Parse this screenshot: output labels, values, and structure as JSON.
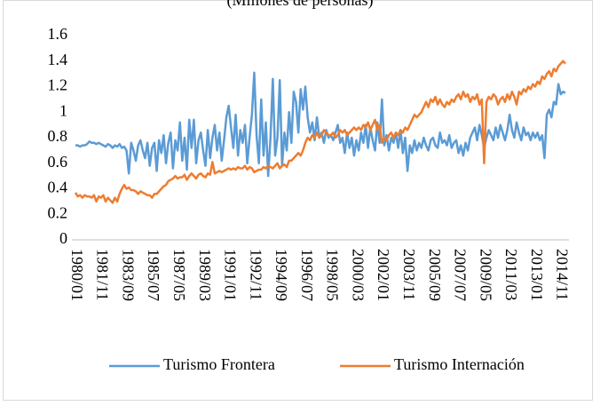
{
  "chart_data": {
    "type": "line",
    "title": "(Millones de personas)",
    "categories": [
      "1980/01",
      null,
      null,
      null,
      null,
      null,
      null,
      null,
      null,
      null,
      null,
      "1981/11",
      null,
      null,
      null,
      null,
      null,
      null,
      null,
      null,
      null,
      null,
      "1983/09",
      null,
      null,
      null,
      null,
      null,
      null,
      null,
      null,
      null,
      null,
      "1985/07",
      null,
      null,
      null,
      null,
      null,
      null,
      null,
      null,
      null,
      null,
      "1987/05",
      null,
      null,
      null,
      null,
      null,
      null,
      null,
      null,
      null,
      null,
      "1989/03",
      null,
      null,
      null,
      null,
      null,
      null,
      null,
      null,
      null,
      null,
      "1991/01",
      null,
      null,
      null,
      null,
      null,
      null,
      null,
      null,
      null,
      null,
      "1992/11",
      null,
      null,
      null,
      null,
      null,
      null,
      null,
      null,
      null,
      null,
      "1994/09",
      null,
      null,
      null,
      null,
      null,
      null,
      null,
      null,
      null,
      null,
      "1996/07",
      null,
      null,
      null,
      null,
      null,
      null,
      null,
      null,
      null,
      null,
      "1998/05",
      null,
      null,
      null,
      null,
      null,
      null,
      null,
      null,
      null,
      null,
      "2000/03",
      null,
      null,
      null,
      null,
      null,
      null,
      null,
      null,
      null,
      null,
      "2002/01",
      null,
      null,
      null,
      null,
      null,
      null,
      null,
      null,
      null,
      null,
      "2003/11",
      null,
      null,
      null,
      null,
      null,
      null,
      null,
      null,
      null,
      null,
      "2005/09",
      null,
      null,
      null,
      null,
      null,
      null,
      null,
      null,
      null,
      null,
      "2007/07",
      null,
      null,
      null,
      null,
      null,
      null,
      null,
      null,
      null,
      null,
      "2009/05",
      null,
      null,
      null,
      null,
      null,
      null,
      null,
      null,
      null,
      null,
      "2011/03",
      null,
      null,
      null,
      null,
      null,
      null,
      null,
      null,
      null,
      null,
      "2013/01",
      null,
      null,
      null,
      null,
      null,
      null,
      null,
      null,
      null,
      null,
      "2014/11",
      null,
      null
    ],
    "series": [
      {
        "name": "Turismo Frontera",
        "color": "#5b9bd5",
        "values": [
          0.74,
          0.74,
          0.73,
          0.74,
          0.74,
          0.75,
          0.77,
          0.76,
          0.76,
          0.75,
          0.76,
          0.75,
          0.74,
          0.73,
          0.75,
          0.74,
          0.72,
          0.74,
          0.73,
          0.75,
          0.72,
          0.73,
          0.7,
          0.52,
          0.76,
          0.7,
          0.62,
          0.74,
          0.78,
          0.7,
          0.64,
          0.76,
          0.58,
          0.72,
          0.76,
          0.54,
          0.78,
          0.68,
          0.82,
          0.6,
          0.76,
          0.84,
          0.56,
          0.78,
          0.7,
          0.92,
          0.62,
          0.8,
          0.55,
          0.94,
          0.72,
          0.94,
          0.6,
          0.78,
          0.84,
          0.7,
          0.58,
          0.86,
          0.64,
          0.8,
          0.9,
          0.7,
          0.84,
          0.62,
          0.78,
          0.96,
          1.05,
          0.88,
          0.72,
          0.98,
          0.66,
          0.86,
          0.76,
          0.9,
          0.6,
          0.8,
          0.98,
          1.31,
          0.82,
          0.6,
          1.1,
          0.66,
          0.92,
          0.5,
          0.8,
          1.26,
          0.66,
          0.8,
          1.25,
          0.58,
          0.84,
          0.7,
          1.0,
          0.76,
          1.16,
          1.08,
          0.84,
          1.18,
          1.02,
          1.2,
          0.96,
          0.84,
          0.92,
          0.78,
          0.96,
          0.8,
          0.84,
          0.76,
          0.86,
          0.8,
          0.82,
          0.78,
          0.84,
          0.9,
          0.76,
          0.8,
          0.68,
          0.84,
          0.72,
          0.8,
          0.66,
          0.78,
          0.7,
          0.84,
          0.76,
          0.9,
          0.72,
          0.88,
          0.78,
          0.7,
          0.92,
          0.76,
          1.1,
          0.74,
          0.82,
          0.7,
          0.8,
          0.76,
          0.84,
          0.72,
          0.86,
          0.68,
          0.8,
          0.54,
          0.74,
          0.68,
          0.78,
          0.7,
          0.76,
          0.72,
          0.8,
          0.74,
          0.7,
          0.78,
          0.8,
          0.74,
          0.72,
          0.84,
          0.76,
          0.78,
          0.74,
          0.82,
          0.72,
          0.76,
          0.78,
          0.68,
          0.74,
          0.66,
          0.76,
          0.7,
          0.8,
          0.84,
          0.88,
          0.78,
          0.9,
          0.82,
          0.72,
          0.8,
          0.86,
          0.82,
          0.78,
          0.88,
          0.8,
          0.9,
          0.84,
          0.78,
          0.86,
          0.98,
          0.86,
          0.8,
          0.92,
          0.84,
          0.78,
          0.88,
          0.82,
          0.84,
          0.78,
          0.84,
          0.8,
          0.84,
          0.78,
          0.82,
          0.64,
          0.98,
          1.02,
          0.96,
          1.08,
          1.06,
          1.22,
          1.14,
          1.16,
          1.15
        ]
      },
      {
        "name": "Turismo Internación",
        "color": "#ed7d31",
        "values": [
          0.37,
          0.34,
          0.35,
          0.33,
          0.35,
          0.34,
          0.34,
          0.33,
          0.35,
          0.3,
          0.34,
          0.33,
          0.35,
          0.3,
          0.33,
          0.31,
          0.29,
          0.33,
          0.3,
          0.36,
          0.4,
          0.43,
          0.4,
          0.41,
          0.39,
          0.39,
          0.38,
          0.36,
          0.38,
          0.37,
          0.36,
          0.35,
          0.35,
          0.33,
          0.36,
          0.36,
          0.38,
          0.4,
          0.42,
          0.43,
          0.46,
          0.47,
          0.48,
          0.5,
          0.48,
          0.49,
          0.49,
          0.51,
          0.47,
          0.5,
          0.52,
          0.5,
          0.48,
          0.51,
          0.52,
          0.5,
          0.49,
          0.52,
          0.51,
          0.61,
          0.52,
          0.53,
          0.54,
          0.53,
          0.54,
          0.55,
          0.56,
          0.55,
          0.56,
          0.55,
          0.57,
          0.56,
          0.56,
          0.58,
          0.55,
          0.57,
          0.56,
          0.53,
          0.54,
          0.55,
          0.55,
          0.57,
          0.56,
          0.58,
          0.57,
          0.56,
          0.58,
          0.6,
          0.56,
          0.58,
          0.59,
          0.57,
          0.62,
          0.62,
          0.64,
          0.66,
          0.68,
          0.66,
          0.7,
          0.76,
          0.8,
          0.78,
          0.82,
          0.8,
          0.84,
          0.8,
          0.82,
          0.86,
          0.84,
          0.82,
          0.82,
          0.84,
          0.8,
          0.82,
          0.86,
          0.84,
          0.86,
          0.82,
          0.84,
          0.86,
          0.88,
          0.86,
          0.88,
          0.86,
          0.9,
          0.88,
          0.92,
          0.86,
          0.9,
          0.94,
          0.86,
          0.9,
          0.76,
          0.8,
          0.78,
          0.82,
          0.84,
          0.8,
          0.84,
          0.82,
          0.86,
          0.84,
          0.88,
          0.86,
          0.9,
          0.94,
          0.98,
          0.96,
          0.98,
          1.0,
          1.04,
          1.08,
          1.04,
          1.1,
          1.08,
          1.12,
          1.06,
          1.1,
          1.06,
          1.04,
          1.08,
          1.06,
          1.1,
          1.08,
          1.12,
          1.14,
          1.1,
          1.16,
          1.12,
          1.14,
          1.08,
          1.12,
          1.1,
          1.14,
          1.06,
          1.1,
          0.6,
          1.08,
          1.12,
          1.1,
          1.14,
          1.12,
          1.06,
          1.1,
          1.12,
          1.08,
          1.14,
          1.1,
          1.16,
          1.12,
          1.06,
          1.16,
          1.14,
          1.18,
          1.16,
          1.2,
          1.18,
          1.22,
          1.2,
          1.24,
          1.22,
          1.28,
          1.26,
          1.3,
          1.32,
          1.28,
          1.34,
          1.32,
          1.36,
          1.38,
          1.4,
          1.38
        ]
      }
    ],
    "ylim": [
      0,
      1.6
    ],
    "yticks": [
      0,
      0.2,
      0.4,
      0.6,
      0.8,
      1,
      1.2,
      1.4,
      1.6
    ],
    "grid": false,
    "legend": "bottom"
  }
}
